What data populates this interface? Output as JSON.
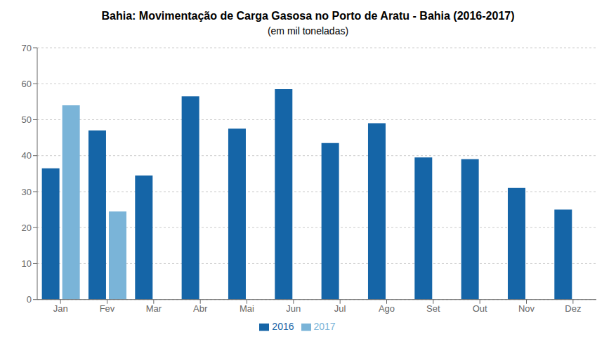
{
  "chart_data": {
    "type": "bar",
    "title": "Bahia: Movimentação de Carga Gasosa no Porto de Aratu - Bahia (2016-2017)",
    "subtitle": "(em mil toneladas)",
    "categories": [
      "Jan",
      "Fev",
      "Mar",
      "Abr",
      "Mai",
      "Jun",
      "Jul",
      "Ago",
      "Set",
      "Out",
      "Nov",
      "Dez"
    ],
    "series": [
      {
        "name": "2016",
        "color": "#1565a7",
        "values": [
          36.5,
          47.0,
          34.5,
          56.5,
          47.5,
          58.5,
          43.5,
          49.0,
          39.5,
          39.0,
          31.0,
          25.0
        ]
      },
      {
        "name": "2017",
        "color": "#7ab4d8",
        "values": [
          54.0,
          24.5,
          null,
          null,
          null,
          null,
          null,
          null,
          null,
          null,
          null,
          null
        ]
      }
    ],
    "ylim": [
      0,
      70
    ],
    "yticks": [
      0,
      10,
      20,
      30,
      40,
      50,
      60,
      70
    ],
    "grid": true,
    "legend": "bottom"
  }
}
